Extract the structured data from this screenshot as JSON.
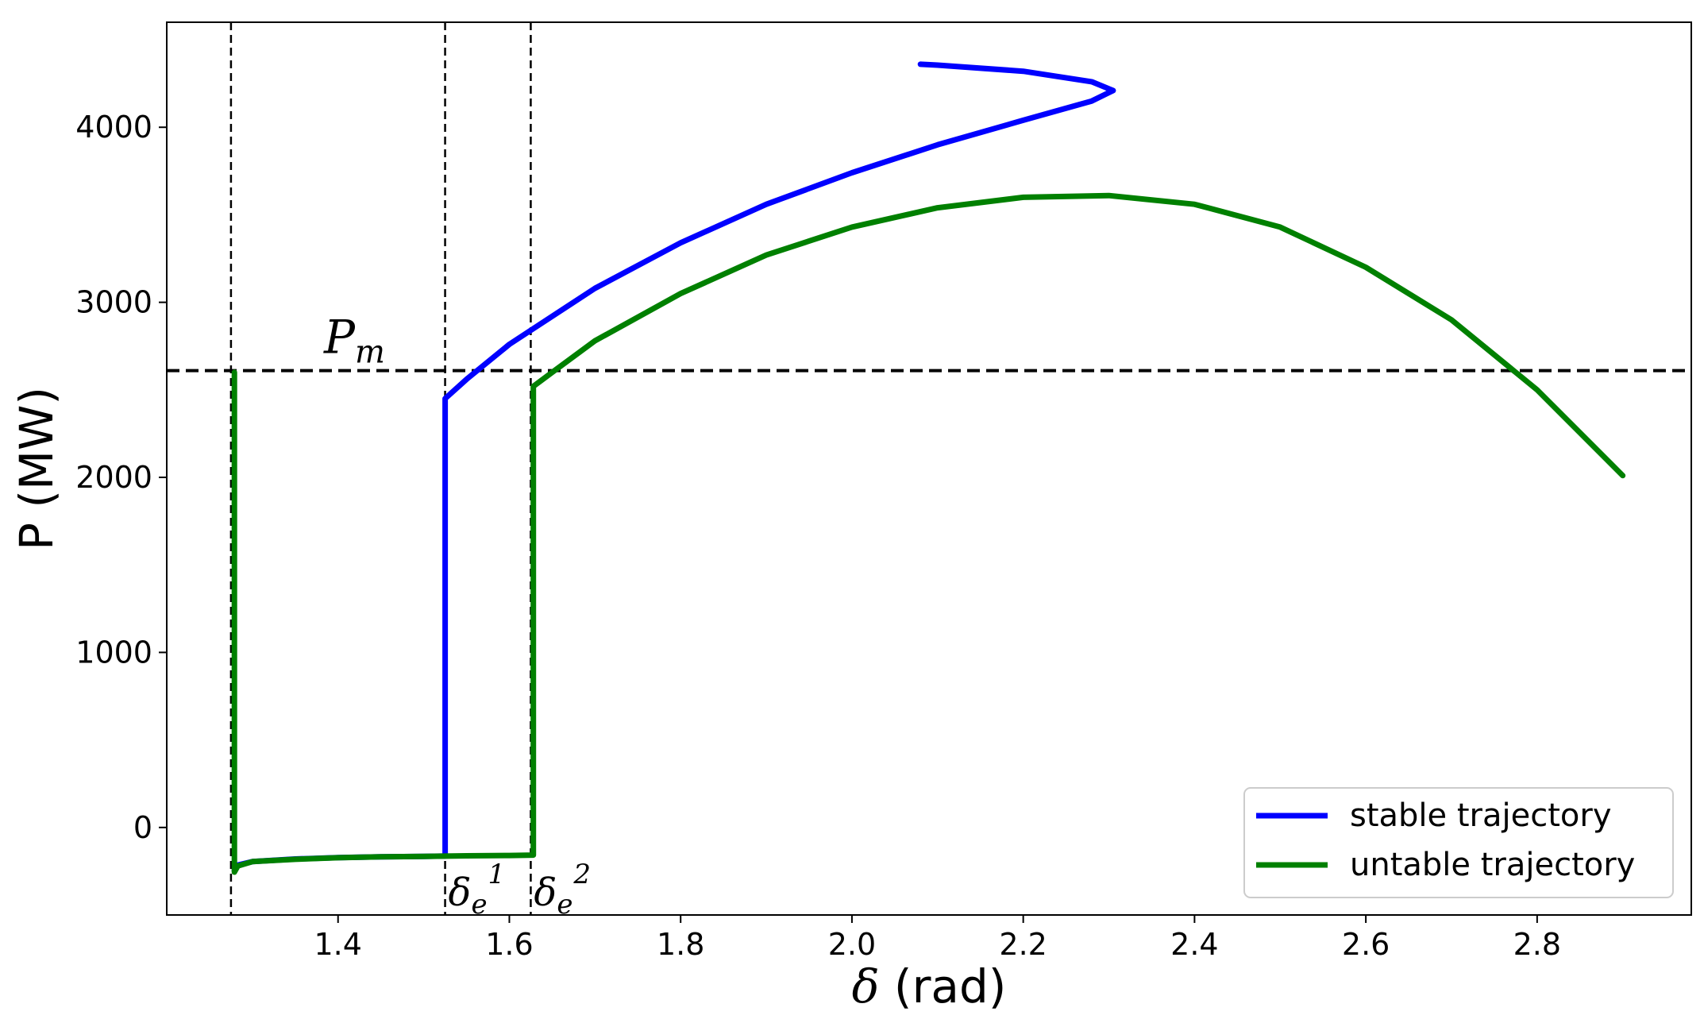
{
  "chart_data": {
    "type": "line",
    "xlabel": {
      "symbol": "δ",
      "unit": " (rad)"
    },
    "ylabel": "P (MW)",
    "xlim": [
      1.2,
      2.98
    ],
    "ylim": [
      -500,
      4600
    ],
    "xticks": [
      1.4,
      1.6,
      1.8,
      2.0,
      2.2,
      2.4,
      2.6,
      2.8
    ],
    "xtick_labels": [
      "1.4",
      "1.6",
      "1.8",
      "2.0",
      "2.2",
      "2.4",
      "2.6",
      "2.8"
    ],
    "yticks": [
      0,
      1000,
      2000,
      3000,
      4000
    ],
    "ytick_labels": [
      "0",
      "1000",
      "2000",
      "3000",
      "4000"
    ],
    "grid": false,
    "legend_position": "bottom-right",
    "reference_lines": {
      "horizontal": {
        "y": 2610,
        "label": {
          "main": "P",
          "sub": "m"
        }
      },
      "vertical": [
        {
          "x": 1.275,
          "label": null
        },
        {
          "x": 1.525,
          "label": {
            "main": "δ",
            "sub": "e",
            "sup": "1"
          }
        },
        {
          "x": 1.625,
          "label": {
            "main": "δ",
            "sub": "e",
            "sup": "2"
          }
        }
      ]
    },
    "series": [
      {
        "name": "stable trajectory",
        "color": "#0000ff",
        "x": [
          1.279,
          1.283,
          1.3,
          1.35,
          1.4,
          1.45,
          1.5,
          1.525,
          1.525,
          1.525,
          1.55,
          1.6,
          1.7,
          1.8,
          1.9,
          2.0,
          2.1,
          2.2,
          2.28,
          2.305,
          2.28,
          2.2,
          2.1,
          2.08
        ],
        "y": [
          -245,
          -215,
          -195,
          -180,
          -172,
          -168,
          -165,
          -163,
          -163,
          2450,
          2560,
          2760,
          3080,
          3340,
          3560,
          3740,
          3900,
          4040,
          4150,
          4210,
          4260,
          4320,
          4355,
          4360
        ]
      },
      {
        "name": "untable trajectory",
        "color": "#008000",
        "x": [
          1.279,
          1.279,
          1.279,
          1.283,
          1.3,
          1.35,
          1.4,
          1.45,
          1.5,
          1.55,
          1.6,
          1.628,
          1.628,
          1.65,
          1.7,
          1.8,
          1.9,
          2.0,
          2.1,
          2.2,
          2.3,
          2.4,
          2.5,
          2.6,
          2.7,
          2.8,
          2.9
        ],
        "y": [
          2600,
          -255,
          -255,
          -220,
          -195,
          -182,
          -173,
          -168,
          -165,
          -162,
          -160,
          -158,
          2520,
          2600,
          2780,
          3050,
          3270,
          3430,
          3540,
          3600,
          3610,
          3560,
          3430,
          3200,
          2900,
          2500,
          2010
        ]
      }
    ]
  }
}
